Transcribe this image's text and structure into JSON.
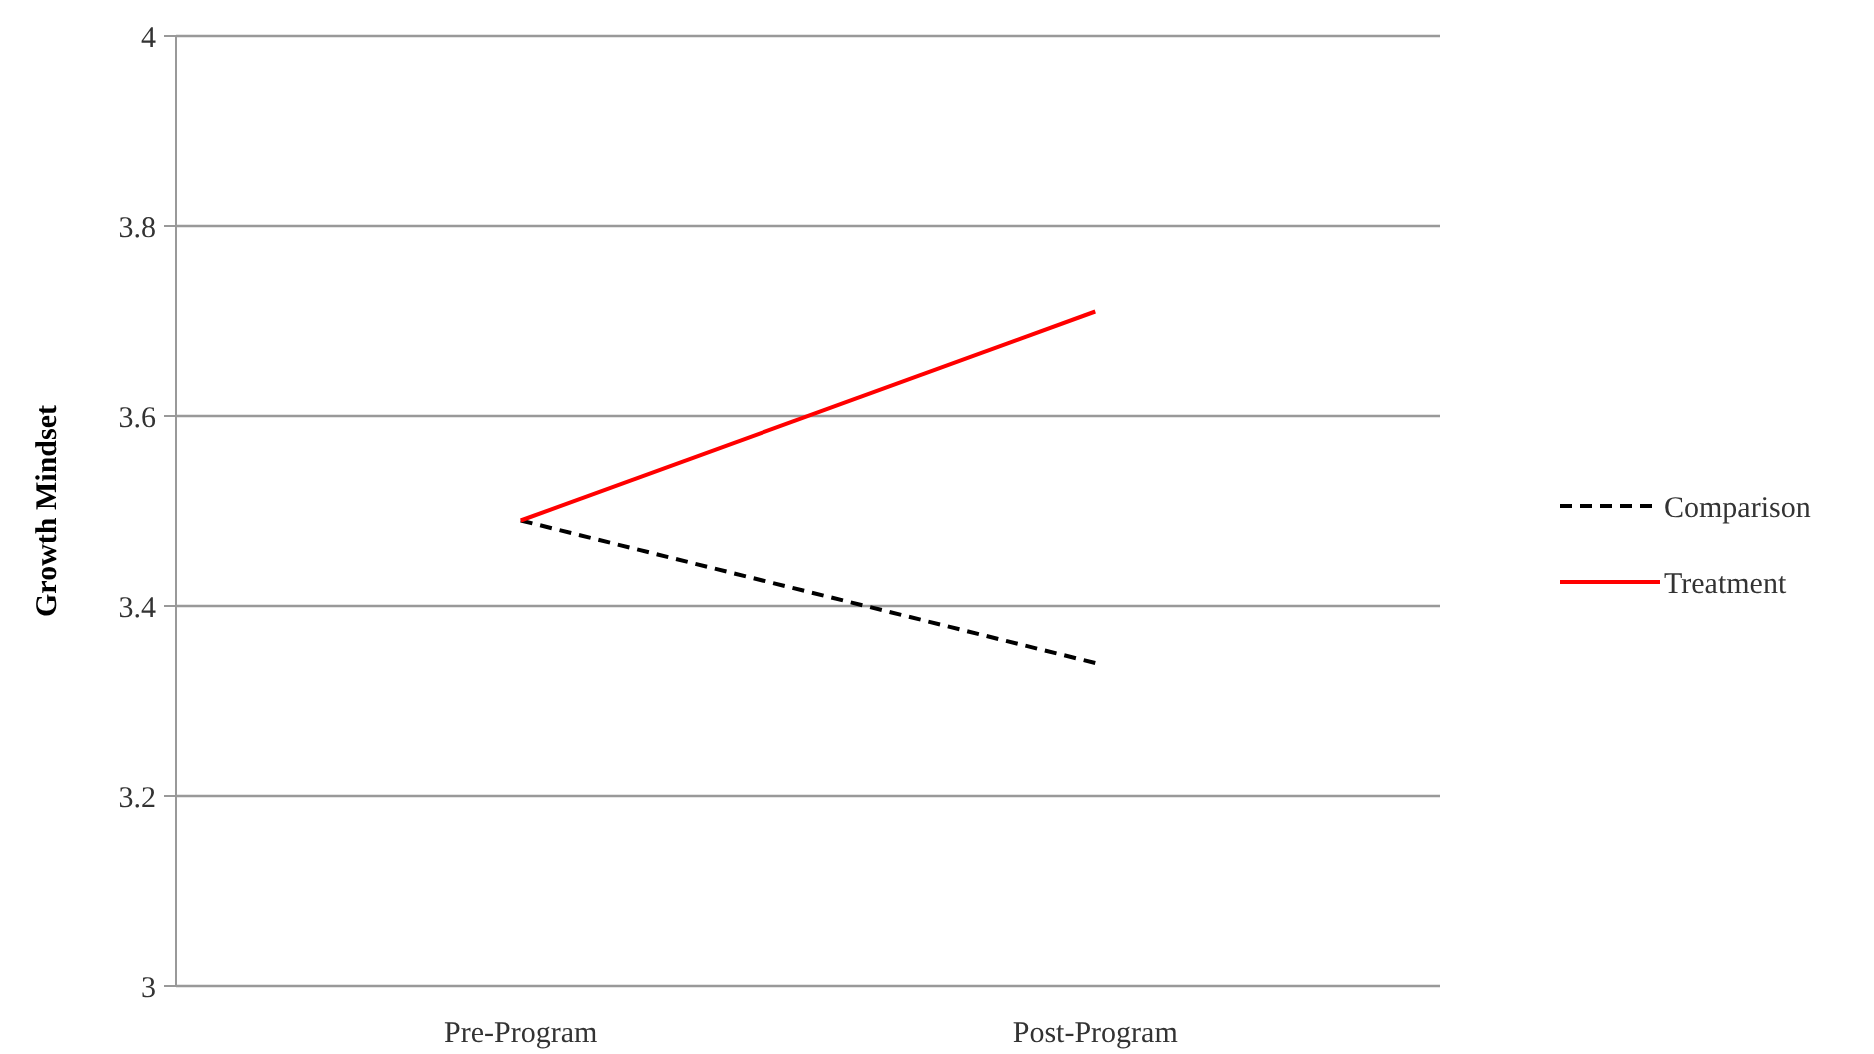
{
  "chart_data": {
    "type": "line",
    "ylabel": "Growth Mindset",
    "categories": [
      "Pre-Program",
      "Post-Program"
    ],
    "series": [
      {
        "name": "Comparison",
        "color": "#000000",
        "values": [
          3.49,
          3.34
        ],
        "line_style": "dashed"
      },
      {
        "name": "Treatment",
        "color": "#ff0000",
        "values": [
          3.49,
          3.71
        ],
        "line_style": "solid"
      }
    ],
    "ylim": [
      3,
      4
    ],
    "yticks": [
      3,
      3.2,
      3.4,
      3.6,
      3.8,
      4
    ],
    "grid": "y",
    "legend": "right",
    "marker": "none"
  }
}
